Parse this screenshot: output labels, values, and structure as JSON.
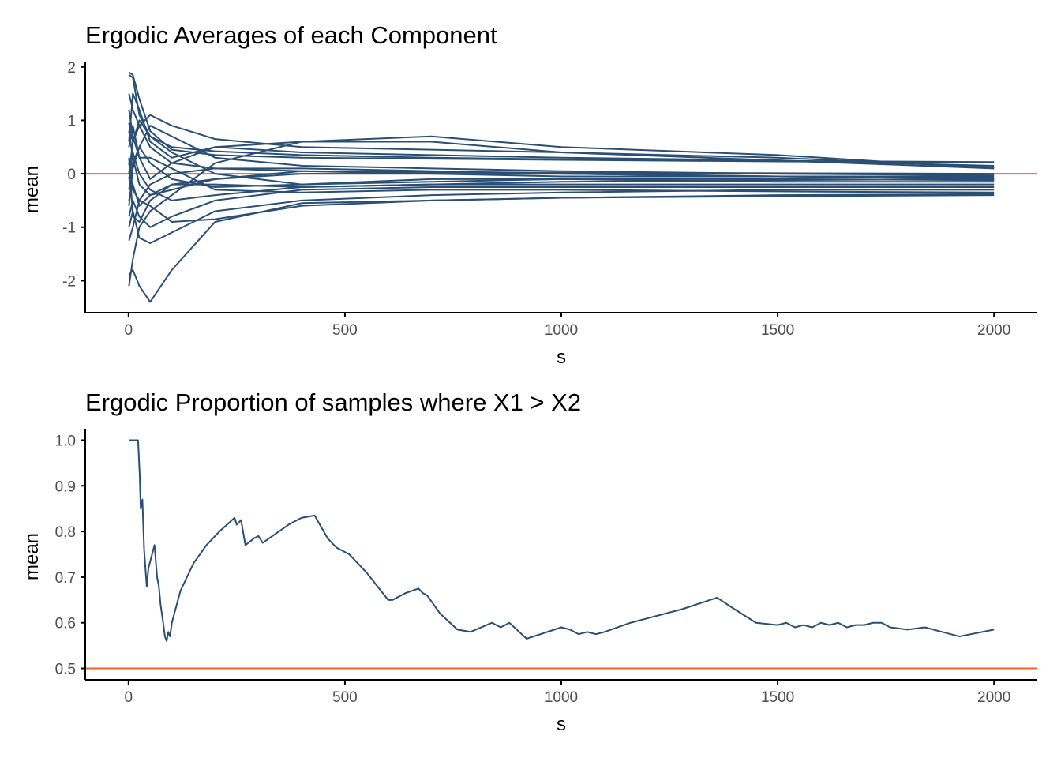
{
  "colors": {
    "series": "#2b4f74",
    "reference": "#e8662a",
    "axis": "#000000",
    "tick_text": "#4d4d4d"
  },
  "chart_data": [
    {
      "type": "line",
      "title": "Ergodic Averages of each Component",
      "xlabel": "s",
      "ylabel": "mean",
      "xlim": [
        -100,
        2100
      ],
      "ylim": [
        -2.6,
        2.1
      ],
      "xticks": [
        0,
        500,
        1000,
        1500,
        2000
      ],
      "yticks": [
        -2,
        -1,
        0,
        1,
        2
      ],
      "grid": false,
      "legend": "none",
      "reference_line": {
        "y": 0
      },
      "series": [
        {
          "x": [
            1,
            10,
            25,
            50,
            100,
            200,
            400,
            700,
            1000,
            1500,
            2000
          ],
          "y": [
            1.9,
            1.85,
            1.4,
            0.8,
            0.45,
            0.35,
            0.3,
            0.28,
            0.26,
            0.23,
            0.21
          ]
        },
        {
          "x": [
            1,
            10,
            25,
            50,
            100,
            200,
            400,
            700,
            1000,
            1500,
            2000
          ],
          "y": [
            1.85,
            1.8,
            1.1,
            0.7,
            0.5,
            0.42,
            0.35,
            0.3,
            0.27,
            0.24,
            0.22
          ]
        },
        {
          "x": [
            1,
            10,
            25,
            50,
            100,
            200,
            400,
            700,
            1000,
            1500,
            2000
          ],
          "y": [
            1.5,
            1.2,
            0.9,
            0.5,
            0.2,
            0.1,
            0.05,
            0.03,
            0.02,
            0.01,
            0.0
          ]
        },
        {
          "x": [
            1,
            10,
            25,
            50,
            100,
            200,
            400,
            700,
            1000,
            1500,
            2000
          ],
          "y": [
            0.95,
            0.6,
            0.9,
            1.1,
            0.9,
            0.65,
            0.5,
            0.45,
            0.4,
            0.3,
            0.12
          ]
        },
        {
          "x": [
            1,
            10,
            25,
            50,
            100,
            200,
            400,
            700,
            1000,
            1500,
            2000
          ],
          "y": [
            0.8,
            0.3,
            -0.2,
            -0.4,
            -0.3,
            -0.1,
            0.0,
            0.0,
            0.0,
            -0.05,
            -0.05
          ]
        },
        {
          "x": [
            1,
            10,
            25,
            50,
            100,
            200,
            400,
            700,
            1000,
            1500,
            2000
          ],
          "y": [
            0.5,
            0.9,
            0.3,
            -0.1,
            0.2,
            0.5,
            0.6,
            0.6,
            0.4,
            0.25,
            0.1
          ]
        },
        {
          "x": [
            1,
            10,
            25,
            50,
            100,
            200,
            400,
            700,
            1000,
            1500,
            2000
          ],
          "y": [
            0.2,
            -0.3,
            -0.5,
            -0.2,
            0.0,
            0.1,
            0.1,
            0.05,
            0.0,
            -0.05,
            -0.1
          ]
        },
        {
          "x": [
            1,
            10,
            25,
            50,
            100,
            200,
            400,
            700,
            1000,
            1500,
            2000
          ],
          "y": [
            0.0,
            0.6,
            1.0,
            0.7,
            0.4,
            0.0,
            -0.2,
            -0.1,
            -0.1,
            -0.15,
            -0.15
          ]
        },
        {
          "x": [
            1,
            10,
            25,
            50,
            100,
            200,
            400,
            700,
            1000,
            1500,
            2000
          ],
          "y": [
            -0.3,
            0.2,
            0.5,
            0.9,
            0.7,
            0.3,
            0.15,
            0.1,
            0.05,
            0.0,
            -0.03
          ]
        },
        {
          "x": [
            1,
            10,
            25,
            50,
            100,
            200,
            400,
            700,
            1000,
            1500,
            2000
          ],
          "y": [
            -0.5,
            -0.2,
            -0.6,
            -0.4,
            -0.2,
            -0.2,
            -0.25,
            -0.2,
            -0.2,
            -0.2,
            -0.2
          ]
        },
        {
          "x": [
            1,
            10,
            25,
            50,
            100,
            200,
            400,
            700,
            1000,
            1500,
            2000
          ],
          "y": [
            -0.8,
            -0.5,
            -0.8,
            -1.0,
            -0.8,
            -0.5,
            -0.3,
            -0.25,
            -0.25,
            -0.25,
            -0.25
          ]
        },
        {
          "x": [
            1,
            10,
            25,
            50,
            100,
            200,
            400,
            700,
            1000,
            1500,
            2000
          ],
          "y": [
            -1.0,
            -0.7,
            -1.2,
            -1.3,
            -1.1,
            -0.7,
            -0.5,
            -0.4,
            -0.35,
            -0.3,
            -0.3
          ]
        },
        {
          "x": [
            1,
            10,
            25,
            50,
            100,
            200,
            400,
            700,
            1000,
            1500,
            2000
          ],
          "y": [
            -1.25,
            -1.0,
            -0.5,
            -0.6,
            -0.9,
            -0.85,
            -0.6,
            -0.5,
            -0.45,
            -0.4,
            -0.38
          ]
        },
        {
          "x": [
            1,
            10,
            25,
            50,
            100,
            200,
            400,
            700,
            1000,
            1500,
            2000
          ],
          "y": [
            -1.9,
            -1.8,
            -2.1,
            -2.4,
            -1.8,
            -0.9,
            -0.55,
            -0.5,
            -0.45,
            -0.42,
            -0.4
          ]
        },
        {
          "x": [
            1,
            10,
            25,
            50,
            100,
            200,
            400,
            700,
            1000,
            1500,
            2000
          ],
          "y": [
            -2.1,
            -1.6,
            -1.0,
            -0.7,
            -0.4,
            0.2,
            0.6,
            0.7,
            0.5,
            0.35,
            0.1
          ]
        },
        {
          "x": [
            1,
            10,
            25,
            50,
            100,
            200,
            400,
            700,
            1000,
            1500,
            2000
          ],
          "y": [
            0.6,
            1.5,
            1.2,
            0.6,
            0.3,
            0.5,
            0.4,
            0.35,
            0.3,
            0.25,
            0.15
          ]
        },
        {
          "x": [
            1,
            10,
            25,
            50,
            100,
            200,
            400,
            700,
            1000,
            1500,
            2000
          ],
          "y": [
            -0.1,
            0.4,
            0.0,
            -0.3,
            -0.5,
            -0.4,
            -0.25,
            -0.2,
            -0.15,
            -0.12,
            -0.1
          ]
        },
        {
          "x": [
            1,
            10,
            25,
            50,
            100,
            200,
            400,
            700,
            1000,
            1500,
            2000
          ],
          "y": [
            0.3,
            -0.8,
            -0.9,
            -0.5,
            -0.2,
            -0.1,
            0.05,
            0.0,
            -0.05,
            -0.05,
            -0.08
          ]
        },
        {
          "x": [
            1,
            10,
            25,
            50,
            100,
            200,
            400,
            700,
            1000,
            1500,
            2000
          ],
          "y": [
            1.2,
            0.7,
            0.3,
            0.3,
            0.1,
            -0.3,
            -0.35,
            -0.3,
            -0.3,
            -0.33,
            -0.35
          ]
        },
        {
          "x": [
            1,
            10,
            25,
            50,
            100,
            200,
            400,
            700,
            1000,
            1500,
            2000
          ],
          "y": [
            -0.6,
            0.1,
            0.5,
            0.2,
            -0.1,
            -0.25,
            -0.2,
            -0.15,
            -0.1,
            -0.1,
            -0.12
          ]
        }
      ]
    },
    {
      "type": "line",
      "title": "Ergodic Proportion of samples where X1 > X2",
      "xlabel": "s",
      "ylabel": "mean",
      "xlim": [
        -100,
        2100
      ],
      "ylim": [
        0.475,
        1.025
      ],
      "xticks": [
        0,
        500,
        1000,
        1500,
        2000
      ],
      "yticks": [
        0.5,
        0.6,
        0.7,
        0.8,
        0.9,
        1.0
      ],
      "ytick_labels": [
        "0.5",
        "0.6",
        "0.7",
        "0.8",
        "0.9",
        "1.0"
      ],
      "grid": false,
      "legend": "none",
      "reference_line": {
        "y": 0.5
      },
      "series": [
        {
          "x": [
            1,
            22,
            26,
            28,
            32,
            36,
            42,
            46,
            60,
            66,
            70,
            74,
            80,
            84,
            88,
            92,
            96,
            100,
            120,
            150,
            180,
            210,
            245,
            250,
            260,
            270,
            290,
            300,
            310,
            340,
            370,
            400,
            430,
            460,
            480,
            490,
            500,
            510,
            550,
            600,
            610,
            640,
            670,
            680,
            690,
            720,
            760,
            790,
            840,
            860,
            880,
            920,
            1000,
            1020,
            1040,
            1060,
            1080,
            1100,
            1160,
            1200,
            1280,
            1360,
            1400,
            1450,
            1500,
            1520,
            1540,
            1560,
            1580,
            1600,
            1620,
            1640,
            1660,
            1680,
            1700,
            1720,
            1740,
            1760,
            1800,
            1840,
            1880,
            1920,
            2000
          ],
          "y": [
            1.0,
            1.0,
            0.92,
            0.85,
            0.87,
            0.76,
            0.68,
            0.72,
            0.77,
            0.7,
            0.68,
            0.64,
            0.6,
            0.57,
            0.56,
            0.58,
            0.57,
            0.6,
            0.67,
            0.73,
            0.77,
            0.8,
            0.83,
            0.815,
            0.825,
            0.77,
            0.785,
            0.79,
            0.775,
            0.795,
            0.815,
            0.83,
            0.835,
            0.785,
            0.765,
            0.76,
            0.755,
            0.75,
            0.71,
            0.65,
            0.65,
            0.665,
            0.675,
            0.665,
            0.66,
            0.62,
            0.585,
            0.58,
            0.6,
            0.59,
            0.6,
            0.565,
            0.59,
            0.585,
            0.575,
            0.58,
            0.575,
            0.58,
            0.6,
            0.61,
            0.63,
            0.655,
            0.63,
            0.6,
            0.595,
            0.6,
            0.59,
            0.595,
            0.59,
            0.6,
            0.595,
            0.6,
            0.59,
            0.595,
            0.595,
            0.6,
            0.6,
            0.59,
            0.585,
            0.59,
            0.58,
            0.57,
            0.585
          ]
        }
      ]
    }
  ]
}
